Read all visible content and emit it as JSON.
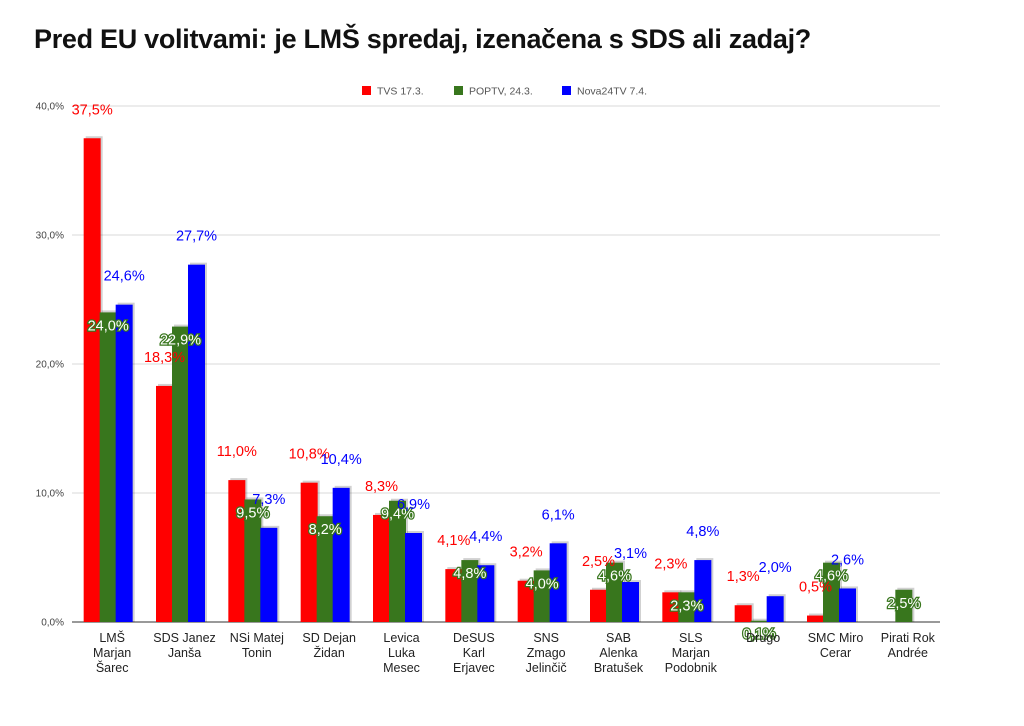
{
  "title": "Pred EU volitvami: je LMŠ spredaj, izenačena s SDS ali zadaj?",
  "chart_data": {
    "type": "bar",
    "title": "Pred EU volitvami: je LMŠ spredaj, izenačena s SDS ali zadaj?",
    "categories": [
      [
        "LMŠ",
        "Marjan",
        "Šarec"
      ],
      [
        "SDS Janez",
        "Janša"
      ],
      [
        "NSi Matej",
        "Tonin"
      ],
      [
        "SD Dejan",
        "Židan"
      ],
      [
        "Levica",
        "Luka",
        "Mesec"
      ],
      [
        "DeSUS",
        "Karl",
        "Erjavec"
      ],
      [
        "SNS",
        "Zmago",
        "Jelinčič"
      ],
      [
        "SAB",
        "Alenka",
        "Bratušek"
      ],
      [
        "SLS",
        "Marjan",
        "Podobnik"
      ],
      [
        "Drugo"
      ],
      [
        "SMC Miro",
        "Cerar"
      ],
      [
        "Pirati Rok",
        "Andrée"
      ]
    ],
    "series": [
      {
        "name": "TVS 17.3.",
        "color": "#ff0000",
        "label_color": "#ff0000",
        "values": [
          37.5,
          18.3,
          11.0,
          10.8,
          8.3,
          4.1,
          3.2,
          2.5,
          2.3,
          1.3,
          0.5,
          null
        ],
        "labels": [
          "37,5%",
          "18,3%",
          "11,0%",
          "10,8%",
          "8,3%",
          "4,1%",
          "3,2%",
          "2,5%",
          "2,3%",
          "1,3%",
          "0,5%",
          ""
        ]
      },
      {
        "name": "POPTV, 24.3.",
        "color": "#38761d",
        "label_color": "#ffffff",
        "values": [
          24.0,
          22.9,
          9.5,
          8.2,
          9.4,
          4.8,
          4.0,
          4.6,
          2.3,
          0.1,
          4.6,
          2.5
        ],
        "labels": [
          "24,0%",
          "22,9%",
          "9,5%",
          "8,2%",
          "9,4%",
          "4,8%",
          "4,0%",
          "4,6%",
          "2,3%",
          "0,1%",
          "4,6%",
          "2,5%"
        ]
      },
      {
        "name": "Nova24TV 7.4.",
        "color": "#0000ff",
        "label_color": "#0000ff",
        "values": [
          24.6,
          27.7,
          7.3,
          10.4,
          6.9,
          4.4,
          6.1,
          3.1,
          4.8,
          2.0,
          2.6,
          null
        ],
        "labels": [
          "24,6%",
          "27,7%",
          "7,3%",
          "10,4%",
          "6,9%",
          "4,4%",
          "6,1%",
          "3,1%",
          "4,8%",
          "2,0%",
          "2,6%",
          ""
        ]
      }
    ],
    "y_ticks": [
      {
        "value": 0,
        "label": "0,0%"
      },
      {
        "value": 10,
        "label": "10,0%"
      },
      {
        "value": 20,
        "label": "20,0%"
      },
      {
        "value": 30,
        "label": "30,0%"
      },
      {
        "value": 40,
        "label": "40,0%"
      }
    ],
    "ylim": [
      0,
      40
    ],
    "grid": true,
    "legend_position": "top-center"
  }
}
